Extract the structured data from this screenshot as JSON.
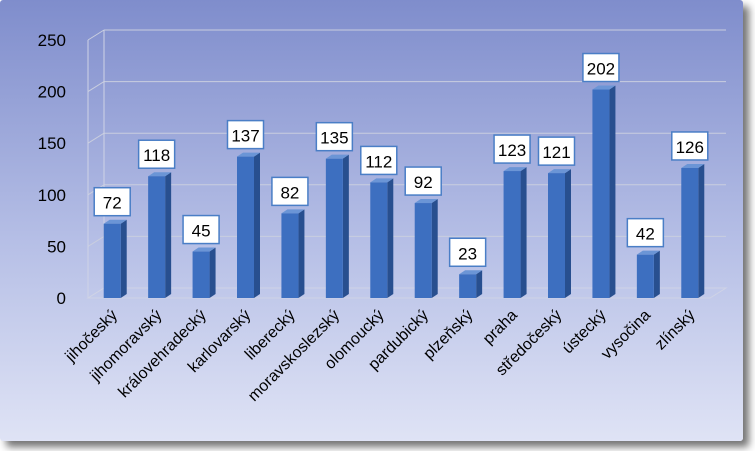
{
  "chart_data": {
    "type": "bar",
    "categories": [
      "jihočeský",
      "jihomoravský",
      "královehradecký",
      "karlovarský",
      "liberecký",
      "moravskoslezský",
      "olomoucký",
      "pardubický",
      "plzeňský",
      "praha",
      "středočeský",
      "ústecký",
      "vysočina",
      "zlínský"
    ],
    "values": [
      72,
      118,
      45,
      137,
      82,
      135,
      112,
      92,
      23,
      123,
      121,
      202,
      42,
      126
    ],
    "yticks": [
      "0",
      "50",
      "100",
      "150",
      "200",
      "250"
    ],
    "ylim": [
      0,
      250
    ],
    "grid": true,
    "legend": "none",
    "bar_color": "#3d6fc0",
    "background_color": "#8f9bd4",
    "label_border_color": "#4a7ec6"
  }
}
